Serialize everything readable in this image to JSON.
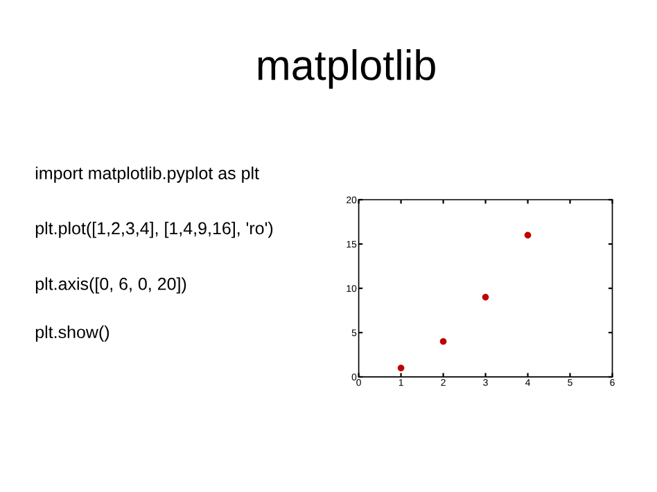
{
  "chart_data": {
    "type": "scatter",
    "title": "matplotlib",
    "annotations": [
      "import matplotlib.pyplot as plt",
      "plt.plot([1,2,3,4], [1,4,9,16], 'ro')",
      "plt.axis([0, 6, 0, 20])",
      "plt.show()"
    ],
    "x": [
      1,
      2,
      3,
      4
    ],
    "series": [
      {
        "color": "#c00000",
        "values": [
          1,
          4,
          9,
          16
        ]
      }
    ],
    "xlim": [
      0,
      6
    ],
    "ylim": [
      0,
      20
    ],
    "xticks": [
      0,
      1,
      2,
      3,
      4,
      5,
      6
    ],
    "yticks": [
      0,
      5,
      10,
      15,
      20
    ],
    "grid": false,
    "marker": "circle"
  }
}
